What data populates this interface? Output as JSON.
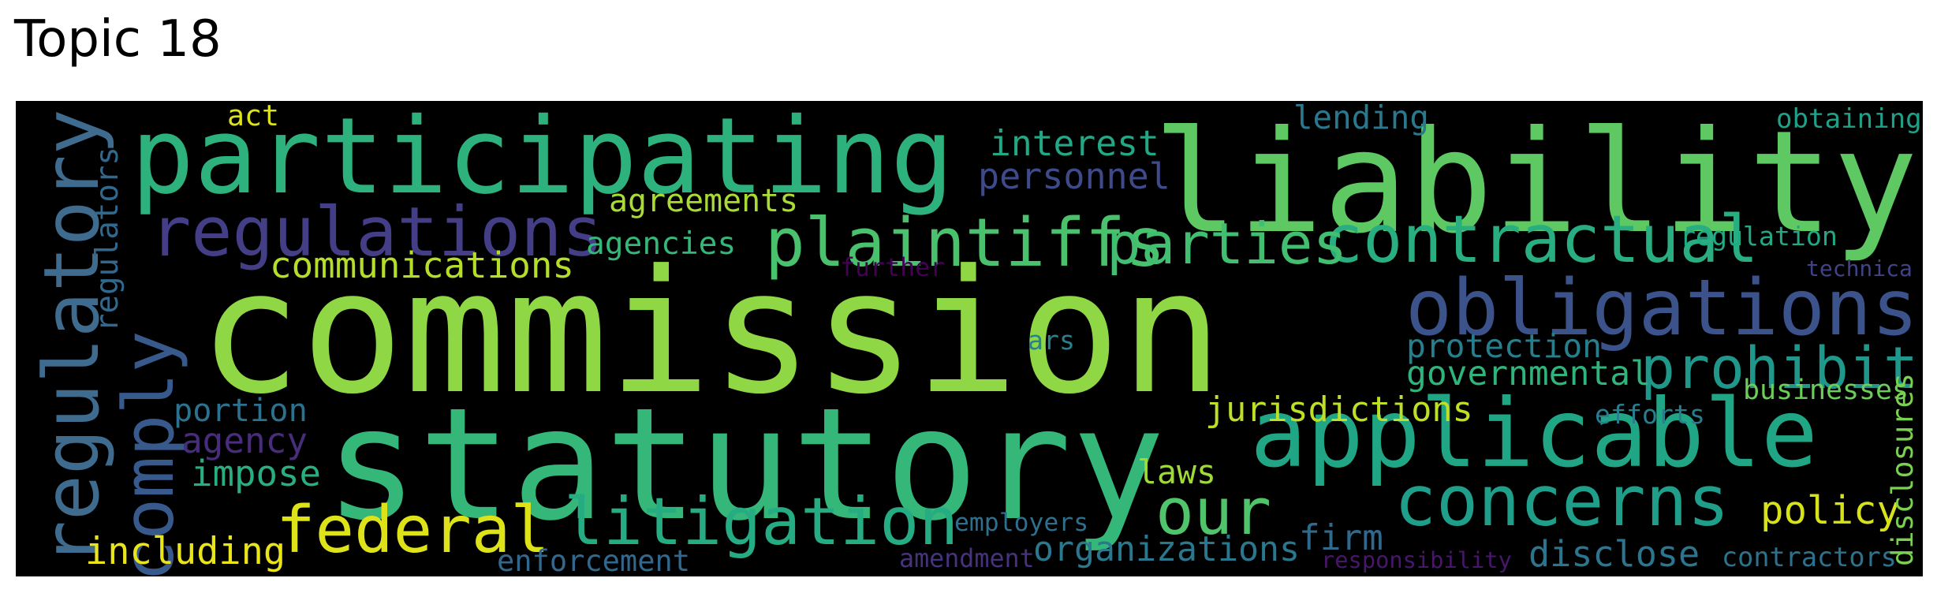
{
  "title": "Topic 18",
  "words": [
    {
      "text": "commission",
      "color": "#8fd744"
    },
    {
      "text": "statutory",
      "color": "#35b779"
    },
    {
      "text": "liability",
      "color": "#5ec962"
    },
    {
      "text": "participating",
      "color": "#2db27d"
    },
    {
      "text": "applicable",
      "color": "#21a685"
    },
    {
      "text": "regulatory",
      "color": "#3e6b8e"
    },
    {
      "text": "obligations",
      "color": "#3b528b"
    },
    {
      "text": "regulations",
      "color": "#433e85"
    },
    {
      "text": "concerns",
      "color": "#1f9e89"
    },
    {
      "text": "comply",
      "color": "#38598c"
    },
    {
      "text": "litigation",
      "color": "#25ac82"
    },
    {
      "text": "federal",
      "color": "#dde318"
    },
    {
      "text": "plaintiffs",
      "color": "#4ac16d"
    },
    {
      "text": "contractual",
      "color": "#28ae80"
    },
    {
      "text": "prohibit",
      "color": "#1f988b"
    },
    {
      "text": "parties",
      "color": "#42be71"
    },
    {
      "text": "our",
      "color": "#4fc46a"
    },
    {
      "text": "interest",
      "color": "#22a884"
    },
    {
      "text": "personnel",
      "color": "#3e4a89"
    },
    {
      "text": "agreements",
      "color": "#a8db34"
    },
    {
      "text": "communications",
      "color": "#b5de2b"
    },
    {
      "text": "agencies",
      "color": "#35b779"
    },
    {
      "text": "regulators",
      "color": "#31688e"
    },
    {
      "text": "governmental",
      "color": "#2fb47c"
    },
    {
      "text": "protection",
      "color": "#277f8e"
    },
    {
      "text": "jurisdictions",
      "color": "#bddf26"
    },
    {
      "text": "organizations",
      "color": "#2a788e"
    },
    {
      "text": "including",
      "color": "#eae51a"
    },
    {
      "text": "policy",
      "color": "#d8e219"
    },
    {
      "text": "portion",
      "color": "#2c728e"
    },
    {
      "text": "agency",
      "color": "#472d7b"
    },
    {
      "text": "impose",
      "color": "#29af7f"
    },
    {
      "text": "laws",
      "color": "#a0da39"
    },
    {
      "text": "businesses",
      "color": "#6ccd5a"
    },
    {
      "text": "firm",
      "color": "#30698e"
    },
    {
      "text": "disclose",
      "color": "#2b758e"
    },
    {
      "text": "contractors",
      "color": "#2c728e"
    },
    {
      "text": "disclosures",
      "color": "#7ad151"
    },
    {
      "text": "efforts",
      "color": "#287d8e"
    },
    {
      "text": "regulation",
      "color": "#22a884"
    },
    {
      "text": "technica",
      "color": "#414287"
    },
    {
      "text": "obtaining",
      "color": "#1fa188"
    },
    {
      "text": "lending",
      "color": "#2a788e"
    },
    {
      "text": "act",
      "color": "#dde318"
    },
    {
      "text": "further",
      "color": "#440154"
    },
    {
      "text": "ars",
      "color": "#26828e"
    },
    {
      "text": "employers",
      "color": "#2e6f8e"
    },
    {
      "text": "amendment",
      "color": "#46327e"
    },
    {
      "text": "responsibility",
      "color": "#481769"
    },
    {
      "text": "enforcement",
      "color": "#31688e"
    }
  ]
}
